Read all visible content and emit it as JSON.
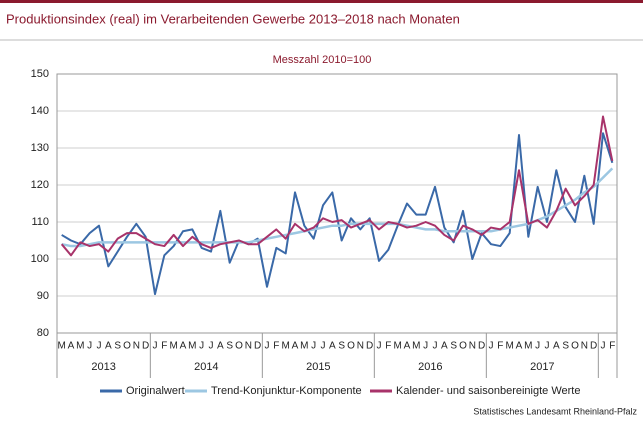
{
  "chart_data": {
    "type": "line",
    "title": "Produktionsindex (real) im Verarbeitenden Gewerbe 2013–2018 nach Monaten",
    "subtitle": "Messzahl 2010=100",
    "categories": [
      "M",
      "A",
      "M",
      "J",
      "J",
      "A",
      "S",
      "O",
      "N",
      "D",
      "J",
      "F",
      "M",
      "A",
      "M",
      "J",
      "J",
      "A",
      "S",
      "O",
      "N",
      "D",
      "J",
      "F",
      "M",
      "A",
      "M",
      "J",
      "J",
      "A",
      "S",
      "O",
      "N",
      "D",
      "J",
      "F",
      "M",
      "A",
      "M",
      "J",
      "J",
      "A",
      "S",
      "O",
      "N",
      "D",
      "J",
      "F",
      "M",
      "A",
      "M",
      "J",
      "J",
      "A",
      "S",
      "O",
      "N",
      "D",
      "J",
      "F"
    ],
    "year_labels": [
      "2013",
      "2014",
      "2015",
      "2016",
      "2017"
    ],
    "ylim": [
      80,
      150
    ],
    "yticks": [
      80,
      90,
      100,
      110,
      120,
      130,
      140,
      150
    ],
    "grid": true,
    "series": [
      {
        "name": "Originalwert",
        "color": "#3a69a8",
        "values": [
          106.5,
          105,
          104,
          107,
          109,
          98,
          102,
          106,
          109.5,
          106,
          90.5,
          101,
          103.5,
          107.5,
          108,
          103,
          102,
          113,
          99,
          105,
          104,
          105.5,
          92.5,
          103,
          101.5,
          118,
          109,
          105.5,
          114.5,
          118,
          105,
          111,
          108,
          111,
          99.5,
          102.5,
          109,
          115,
          112,
          112,
          119.5,
          108.5,
          104.5,
          113,
          100,
          107,
          104,
          103.5,
          107,
          133.5,
          106,
          119.5,
          110,
          124,
          114,
          110,
          122.5,
          109.5,
          134,
          126
        ]
      },
      {
        "name": "Trend-Konjunktur-Komponente",
        "color": "#9cc7e2",
        "values": [
          104,
          103.5,
          103.5,
          104,
          104.5,
          104.5,
          104.5,
          104.5,
          104.5,
          104.5,
          104.5,
          104.5,
          104.5,
          104.5,
          104.5,
          104.5,
          104.5,
          104.5,
          104.5,
          104.5,
          104.5,
          105,
          105.5,
          106,
          106.5,
          107,
          107.5,
          108,
          108.5,
          109,
          109,
          109.5,
          109.5,
          109.5,
          109.5,
          109.5,
          109.5,
          109,
          108.5,
          108,
          108,
          107.5,
          107.5,
          107.5,
          107.5,
          107.5,
          107.5,
          108,
          108.5,
          109,
          109.5,
          110.5,
          111.5,
          113,
          114.5,
          116,
          118,
          119.5,
          122,
          124.5
        ]
      },
      {
        "name": "Kalender- und saisonbereinigte Werte",
        "color": "#a8336a",
        "values": [
          104,
          101,
          104.5,
          103.5,
          104,
          102,
          105.5,
          107,
          107,
          105.5,
          104,
          103.5,
          106.5,
          103.5,
          106,
          104,
          103,
          104,
          104.5,
          105,
          104,
          104,
          106,
          108,
          105.5,
          109.5,
          107.5,
          108.5,
          111,
          110,
          110.5,
          108.5,
          109.5,
          110.5,
          108,
          110,
          109.5,
          108.5,
          109,
          110,
          109,
          106.5,
          105,
          109,
          108,
          106.5,
          108.5,
          108,
          110,
          124,
          109.5,
          110.5,
          108.5,
          113,
          119,
          114.5,
          117,
          120,
          138.5,
          126.5
        ]
      }
    ],
    "source": "Statistisches Landesamt Rheinland-Pfalz"
  }
}
